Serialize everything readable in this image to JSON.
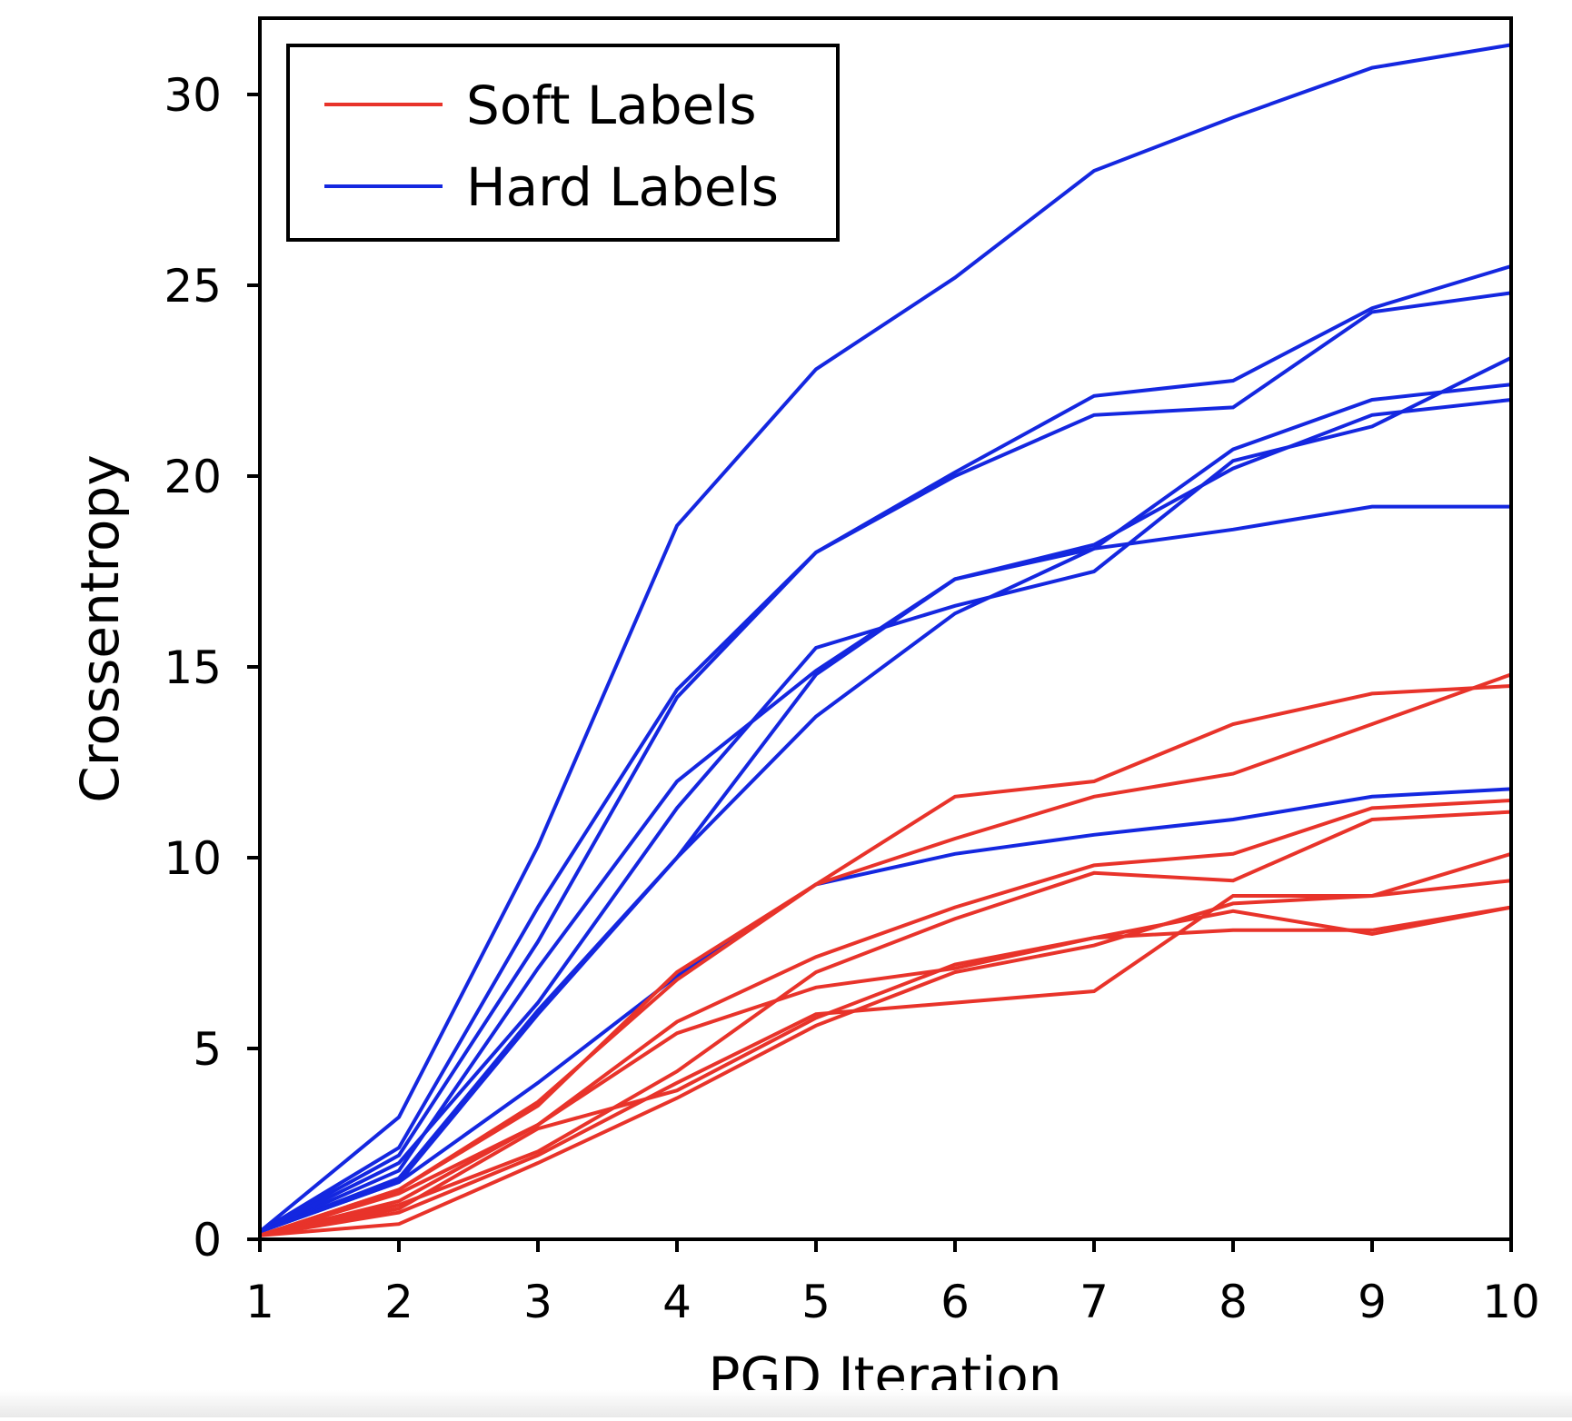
{
  "chart_data": {
    "type": "line",
    "title": "",
    "xlabel": "PGD Iteration",
    "ylabel": "Crossentropy",
    "xlim": [
      1,
      10
    ],
    "ylim": [
      0,
      32
    ],
    "x": [
      1,
      2,
      3,
      4,
      5,
      6,
      7,
      8,
      9,
      10
    ],
    "x_ticks": [
      "1",
      "2",
      "3",
      "4",
      "5",
      "6",
      "7",
      "8",
      "9",
      "10"
    ],
    "y_ticks": [
      0,
      5,
      10,
      15,
      20,
      25,
      30
    ],
    "y_tick_labels": [
      "0",
      "5",
      "10",
      "15",
      "20",
      "25",
      "30"
    ],
    "grid": false,
    "legend_position": "top-left",
    "groups": [
      {
        "name": "Soft Labels",
        "color": "#e8332a"
      },
      {
        "name": "Hard Labels",
        "color": "#1427e0"
      }
    ],
    "series": [
      {
        "name": "Hard Labels",
        "values": [
          0.2,
          3.2,
          10.3,
          18.7,
          22.8,
          25.2,
          28.0,
          29.4,
          30.7,
          31.3
        ]
      },
      {
        "name": "Hard Labels",
        "values": [
          0.2,
          2.4,
          8.7,
          14.4,
          18.0,
          20.1,
          22.1,
          22.5,
          24.4,
          25.5
        ]
      },
      {
        "name": "Hard Labels",
        "values": [
          0.2,
          2.2,
          7.8,
          14.2,
          18.0,
          20.0,
          21.6,
          21.8,
          24.3,
          24.8
        ]
      },
      {
        "name": "Hard Labels",
        "values": [
          0.2,
          1.8,
          7.1,
          12.0,
          14.9,
          17.3,
          18.1,
          20.7,
          22.0,
          22.4
        ]
      },
      {
        "name": "Hard Labels",
        "values": [
          0.2,
          2.0,
          6.2,
          11.3,
          15.5,
          16.6,
          17.5,
          20.4,
          21.3,
          23.1
        ]
      },
      {
        "name": "Hard Labels",
        "values": [
          0.2,
          1.6,
          6.0,
          10.0,
          14.8,
          17.3,
          18.2,
          20.2,
          21.6,
          22.0
        ]
      },
      {
        "name": "Hard Labels",
        "values": [
          0.2,
          1.5,
          5.9,
          10.0,
          13.7,
          16.4,
          18.1,
          18.6,
          19.2,
          19.2
        ]
      },
      {
        "name": "Hard Labels",
        "values": [
          0.2,
          1.5,
          4.1,
          6.9,
          9.3,
          10.1,
          10.6,
          11.0,
          11.6,
          11.8
        ]
      },
      {
        "name": "Soft Labels",
        "values": [
          0.1,
          1.3,
          3.5,
          7.0,
          9.3,
          11.6,
          12.0,
          13.5,
          14.3,
          14.5
        ]
      },
      {
        "name": "Soft Labels",
        "values": [
          0.1,
          1.3,
          3.6,
          6.8,
          9.3,
          10.5,
          11.6,
          12.2,
          13.5,
          14.8
        ]
      },
      {
        "name": "Soft Labels",
        "values": [
          0.1,
          1.2,
          3.0,
          5.7,
          7.4,
          8.7,
          9.8,
          10.1,
          11.3,
          11.5
        ]
      },
      {
        "name": "Soft Labels",
        "values": [
          0.1,
          1.0,
          3.0,
          5.4,
          6.6,
          7.1,
          7.9,
          8.1,
          8.1,
          8.7
        ]
      },
      {
        "name": "Soft Labels",
        "values": [
          0.1,
          0.9,
          2.3,
          4.4,
          7.0,
          8.4,
          9.6,
          9.4,
          11.0,
          11.2
        ]
      },
      {
        "name": "Soft Labels",
        "values": [
          0.1,
          0.8,
          2.9,
          3.9,
          5.8,
          7.2,
          7.9,
          8.6,
          8.0,
          8.7
        ]
      },
      {
        "name": "Soft Labels",
        "values": [
          0.1,
          0.7,
          2.2,
          4.1,
          5.9,
          6.2,
          6.5,
          9.0,
          9.0,
          10.1
        ]
      },
      {
        "name": "Soft Labels",
        "values": [
          0.1,
          0.4,
          2.0,
          3.7,
          5.6,
          7.0,
          7.7,
          8.8,
          9.0,
          9.4
        ]
      }
    ]
  }
}
